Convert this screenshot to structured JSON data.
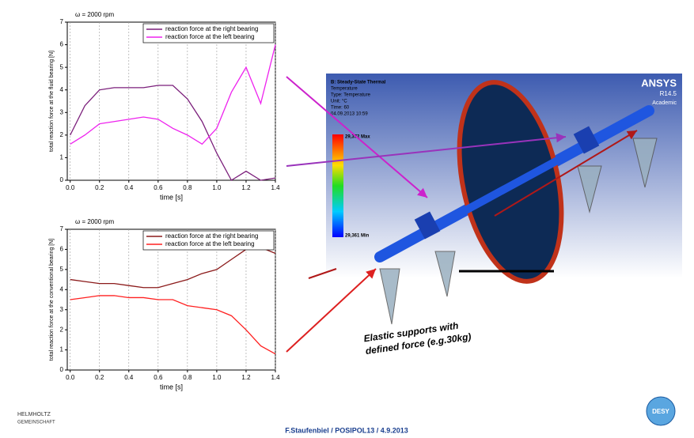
{
  "chart_data": [
    {
      "type": "line",
      "title": "ω = 2000 rpm",
      "xlabel": "time [s]",
      "ylabel": "total reaction force at the fluid bearing [N]",
      "x": [
        0,
        0.1,
        0.2,
        0.3,
        0.4,
        0.5,
        0.6,
        0.7,
        0.8,
        0.9,
        1.0,
        1.1,
        1.2,
        1.3,
        1.4
      ],
      "series": [
        {
          "name": "reaction force at the right bearing",
          "color": "#7b1f7b",
          "values": [
            2.0,
            3.3,
            4.0,
            4.1,
            4.1,
            4.1,
            4.2,
            4.2,
            3.6,
            2.6,
            1.2,
            0.0,
            0.4,
            0.0,
            0.1
          ]
        },
        {
          "name": "reaction force at the left bearing",
          "color": "#ee22ee",
          "values": [
            1.6,
            2.0,
            2.5,
            2.6,
            2.7,
            2.8,
            2.7,
            2.3,
            2.0,
            1.6,
            2.3,
            3.9,
            5.0,
            3.4,
            6.0
          ]
        }
      ],
      "xlim": [
        -0.02,
        1.4
      ],
      "ylim": [
        0,
        7
      ],
      "xticks": [
        {
          "value": 0,
          "label": "0.0"
        },
        0.2,
        0.4,
        0.6,
        0.8,
        {
          "value": 1,
          "label": "1.0"
        },
        1.2,
        1.4
      ],
      "yticks": [
        0,
        1,
        2,
        3,
        4,
        5,
        6,
        7
      ],
      "grid": "x",
      "legend": "upper right"
    },
    {
      "type": "line",
      "title": "ω = 2000 rpm",
      "xlabel": "time [s]",
      "ylabel": "total reaction force at the conventional bearing [N]",
      "x": [
        0,
        0.1,
        0.2,
        0.3,
        0.4,
        0.5,
        0.6,
        0.7,
        0.8,
        0.9,
        1.0,
        1.1,
        1.2,
        1.3,
        1.4
      ],
      "series": [
        {
          "name": "reaction force at the right bearing",
          "color": "#8b1a1a",
          "values": [
            4.5,
            4.4,
            4.3,
            4.3,
            4.2,
            4.1,
            4.1,
            4.3,
            4.5,
            4.8,
            5.0,
            5.5,
            6.0,
            6.1,
            5.8
          ]
        },
        {
          "name": "reaction force at the left bearing",
          "color": "#ff2020",
          "values": [
            3.5,
            3.6,
            3.7,
            3.7,
            3.6,
            3.6,
            3.5,
            3.5,
            3.2,
            3.1,
            3.0,
            2.7,
            2.0,
            1.2,
            0.8
          ]
        }
      ],
      "xlim": [
        -0.02,
        1.4
      ],
      "ylim": [
        0,
        7
      ],
      "xticks": [
        {
          "value": 0,
          "label": "0.0"
        },
        0.2,
        0.4,
        0.6,
        0.8,
        {
          "value": 1,
          "label": "1.0"
        },
        1.2,
        1.4
      ],
      "yticks": [
        0,
        1,
        2,
        3,
        4,
        5,
        6,
        7
      ],
      "grid": "x",
      "legend": "upper right"
    }
  ],
  "ansys": {
    "info": [
      "B: Steady-State Thermal",
      "Temperature",
      "Type: Temperature",
      "Unit: °C",
      "Time: 60",
      "04.09.2013 10:59"
    ],
    "max": "29,372 Max",
    "min": "29,361 Min",
    "brand": "ANSYS",
    "version": "R14.5",
    "license": "Academic"
  },
  "annotation": [
    "Elastic supports with",
    "defined force (e.g.30kg)"
  ],
  "footer": {
    "author": "F.Staufenbiel / POSIPOL13 / 4.9.2013",
    "logo_left": [
      "HELMHOLTZ",
      "GEMEINSCHAFT"
    ],
    "logo_right": "DESY"
  }
}
